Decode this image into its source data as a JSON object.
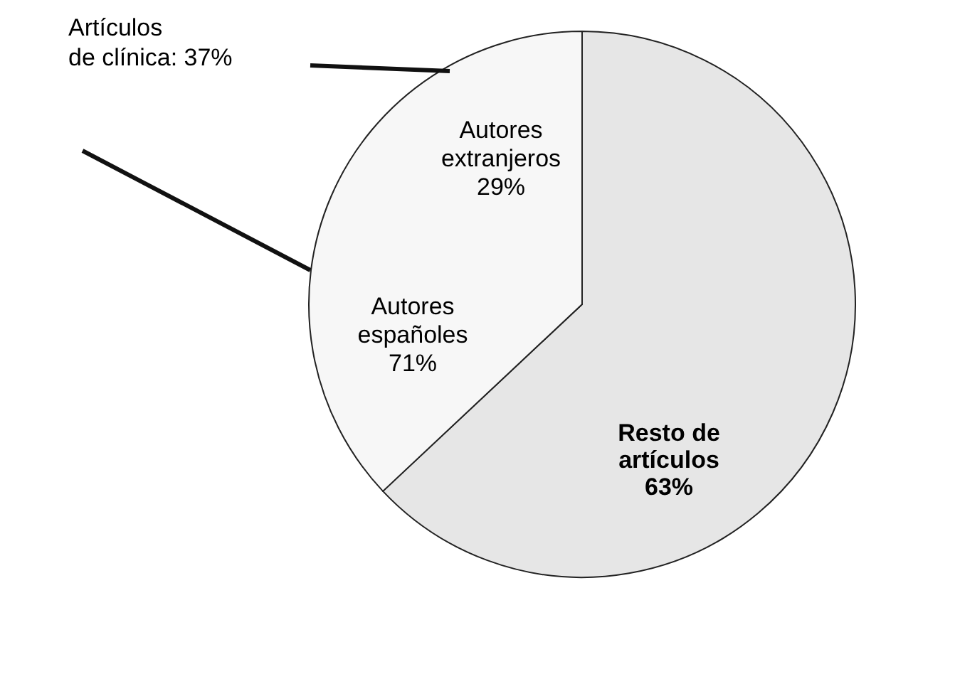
{
  "chart_data": {
    "type": "pie",
    "categories": [
      "Resto de\nartículos",
      "Artículos\nde clínica"
    ],
    "values": [
      63,
      37
    ],
    "colors": [
      "#e6e6e6",
      "#f7f7f7"
    ],
    "value_labels": [
      "63%",
      "37%"
    ],
    "annotations": [
      "Autores\nextranjeros\n29%",
      "Autores\nespañoles\n71%"
    ]
  }
}
